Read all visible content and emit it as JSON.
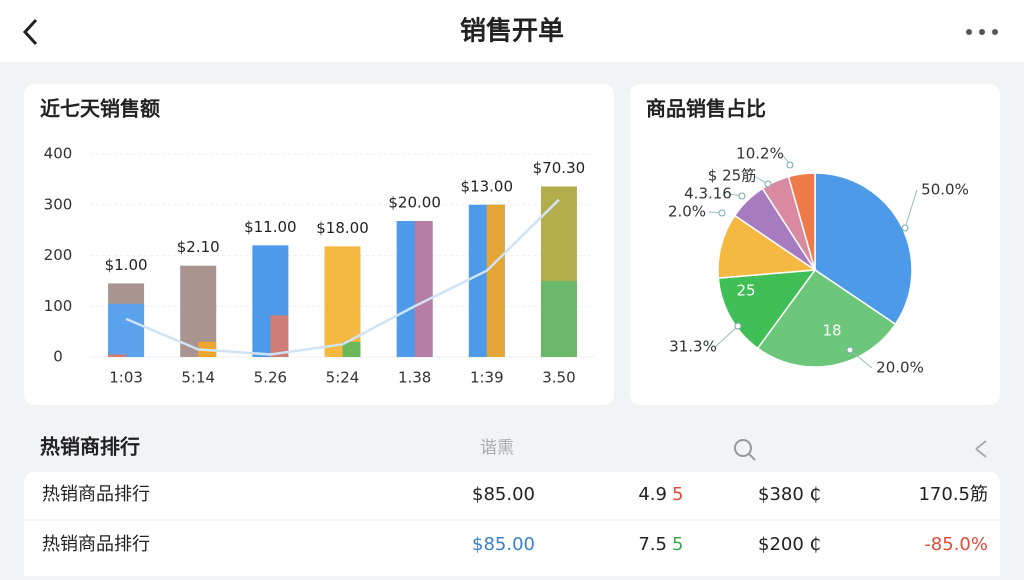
{
  "header": {
    "title": "销售开单"
  },
  "chart_data": [
    {
      "type": "bar",
      "title": "近七天销售额",
      "categories": [
        "1:03",
        "5:14",
        "5.26",
        "5:24",
        "1.38",
        "1:39",
        "3.50"
      ],
      "ylim": [
        0,
        400
      ],
      "yticks": [
        0,
        100,
        200,
        300,
        400
      ],
      "grid": true,
      "series": [
        {
          "colors": [
            "#a9948f",
            "#a9948f",
            "#4d9be8",
            "#f5b942",
            "#4d9be8",
            "#4d9be8",
            "#b3ad4c"
          ],
          "values": [
            145,
            180,
            220,
            218,
            268,
            300,
            336
          ]
        },
        {
          "colors": [
            "#5aa3ec",
            "#a9948f",
            "#4d9be8",
            "#f5b942",
            "#4d9be8",
            "#4d9be8",
            "#6cb86a"
          ],
          "values": [
            105,
            null,
            null,
            null,
            null,
            null,
            150
          ]
        },
        {
          "colors": [
            "#e27560",
            "#f5a623",
            "#e07a6a",
            "#5cb85c",
            "#c27ba0",
            "#f5a623",
            "#6cb86a"
          ],
          "values": [
            5,
            30,
            82,
            30,
            268,
            300,
            null
          ]
        }
      ],
      "line": {
        "color": "#cfe3f5",
        "values": [
          75,
          15,
          5,
          25,
          100,
          170,
          310
        ]
      },
      "annotations": [
        "$1.00",
        "$2.10",
        "$11.00",
        "$18.00",
        "$20.00",
        "$13.00",
        "$70.30"
      ]
    },
    {
      "type": "pie",
      "title": "商品销售占比",
      "values": [
        34.4,
        25.6,
        13.6,
        10.8,
        6.4,
        4.7,
        4.4
      ],
      "colors": [
        "#4d9be8",
        "#6cc77a",
        "#3fbf55",
        "#f5b942",
        "#a77bc0",
        "#d98aa0",
        "#ee7a4a"
      ],
      "annotations": [
        "50.0%",
        "20.0%",
        "31.3%",
        "2.0%",
        "4.3.16",
        "$ 25筋",
        "10.2%",
        "25",
        "18"
      ]
    }
  ],
  "ranking": {
    "title": "热销商排行",
    "column": "谐熏",
    "rows": [
      [
        "热销商品排行",
        "$85.00",
        "4.9",
        "5",
        "$380 ₵",
        "170.5筋"
      ],
      [
        "热销商品排行",
        "$85.00",
        "7.5",
        "5",
        "$200 ₵",
        "-85.0%"
      ]
    ]
  }
}
